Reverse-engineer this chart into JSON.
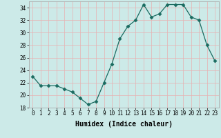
{
  "x": [
    0,
    1,
    2,
    3,
    4,
    5,
    6,
    7,
    8,
    9,
    10,
    11,
    12,
    13,
    14,
    15,
    16,
    17,
    18,
    19,
    20,
    21,
    22,
    23
  ],
  "y": [
    23,
    21.5,
    21.5,
    21.5,
    21,
    20.5,
    19.5,
    18.5,
    19,
    22,
    25,
    29,
    31,
    32,
    34.5,
    32.5,
    33,
    34.5,
    34.5,
    34.5,
    32.5,
    32,
    28,
    25.5
  ],
  "line_color": "#1a6b60",
  "marker_color": "#1a6b60",
  "bg_color": "#cceae8",
  "grid_color": "#e8b0b0",
  "xlabel": "Humidex (Indice chaleur)",
  "ylim": [
    18,
    35
  ],
  "yticks": [
    18,
    20,
    22,
    24,
    26,
    28,
    30,
    32,
    34
  ],
  "xlim": [
    -0.5,
    23.5
  ],
  "xtick_labels": [
    "0",
    "1",
    "2",
    "3",
    "4",
    "5",
    "6",
    "7",
    "8",
    "9",
    "10",
    "11",
    "12",
    "13",
    "14",
    "15",
    "16",
    "17",
    "18",
    "19",
    "20",
    "21",
    "22",
    "23"
  ],
  "tick_fontsize": 5.5,
  "xlabel_fontsize": 7
}
